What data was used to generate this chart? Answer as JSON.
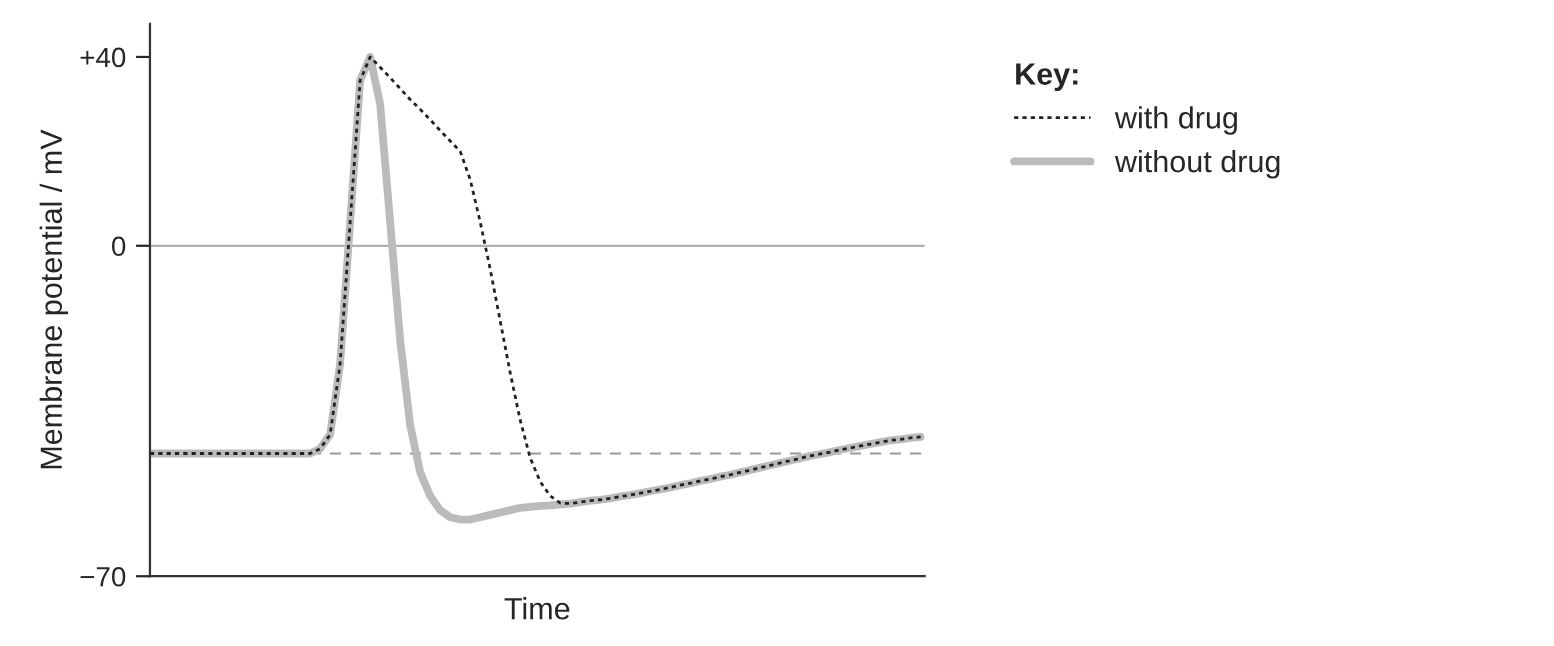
{
  "chart_data": {
    "type": "line",
    "xlabel": "Time",
    "ylabel": "Membrane potential / mV",
    "legend_title": "Key:",
    "legend": "right",
    "grid": false,
    "marker": "none",
    "categories": [
      null,
      null,
      null,
      null,
      null,
      null,
      null,
      null,
      null,
      null,
      null,
      null,
      null,
      null,
      null,
      null,
      null,
      null,
      null,
      null,
      null,
      null,
      null,
      null,
      null,
      null,
      null,
      null,
      null,
      null,
      null,
      null,
      null,
      null,
      null,
      null,
      null,
      null,
      null,
      null,
      null,
      null,
      null,
      null,
      null,
      null,
      null,
      null,
      null,
      null,
      null,
      null,
      null,
      null,
      null,
      null,
      null,
      null,
      null,
      null,
      null,
      null,
      null,
      null,
      null,
      null,
      null,
      null,
      null,
      null,
      null,
      null,
      null,
      null,
      null,
      null,
      null,
      null
    ],
    "ylim": [
      -70,
      47
    ],
    "yticks": [
      {
        "value": 40,
        "label": "+40"
      },
      0,
      {
        "value": -70,
        "label": "−70"
      }
    ],
    "ref_lines": [
      {
        "axis": "y",
        "value": 0,
        "color": "#b0b0b0",
        "line_style": "solid"
      },
      {
        "axis": "y",
        "value": -44,
        "color": "#999999",
        "line_style": "dashed"
      }
    ],
    "series": [
      {
        "name": "without drug",
        "color": "#bbbbbb",
        "line_style": "solid",
        "values": [
          -44,
          -44,
          -44,
          -44,
          -44,
          -44,
          -44,
          -44,
          -44,
          -44,
          -44,
          -44,
          -44,
          -44,
          -44,
          -44,
          -44,
          -43,
          -40,
          -25,
          5,
          35,
          40,
          30,
          5,
          -20,
          -38,
          -48,
          -53,
          -56,
          -57.5,
          -58,
          -58,
          -57.5,
          -57,
          -56.5,
          -56,
          -55.5,
          -55.3,
          -55.1,
          -55,
          -54.8,
          -54.6,
          -54.3,
          -54,
          -53.8,
          -53.5,
          -53.1,
          -52.8,
          -52.4,
          -52,
          -51.6,
          -51.2,
          -50.7,
          -50.3,
          -49.8,
          -49.4,
          -48.9,
          -48.5,
          -48,
          -47.5,
          -47,
          -46.5,
          -46,
          -45.5,
          -45,
          -44.5,
          -44.1,
          -43.7,
          -43.2,
          -42.8,
          -42.4,
          -42,
          -41.6,
          -41.2,
          -41,
          -40.7,
          -40.5
        ]
      },
      {
        "name": "with drug",
        "color": "#222222",
        "line_style": "dotted",
        "values": [
          -44,
          -44,
          -44,
          -44,
          -44,
          -44,
          -44,
          -44,
          -44,
          -44,
          -44,
          -44,
          -44,
          -44,
          -44,
          -44,
          -44,
          -43,
          -40,
          -25,
          5,
          35,
          40,
          37.8,
          35.6,
          33.3,
          31,
          28.9,
          26.7,
          24.4,
          22.2,
          20,
          14,
          5,
          -5,
          -16,
          -27,
          -37,
          -45,
          -50,
          -53,
          -54.5,
          -54.6,
          -54.3,
          -54,
          -53.8,
          -53.5,
          -53.1,
          -52.8,
          -52.4,
          -52,
          -51.6,
          -51.2,
          -50.7,
          -50.3,
          -49.8,
          -49.4,
          -48.9,
          -48.5,
          -48,
          -47.5,
          -47,
          -46.5,
          -46,
          -45.5,
          -45,
          -44.5,
          -44.1,
          -43.7,
          -43.2,
          -42.8,
          -42.4,
          -42,
          -41.6,
          -41.2,
          -41,
          -40.7,
          -40.5
        ]
      }
    ]
  }
}
